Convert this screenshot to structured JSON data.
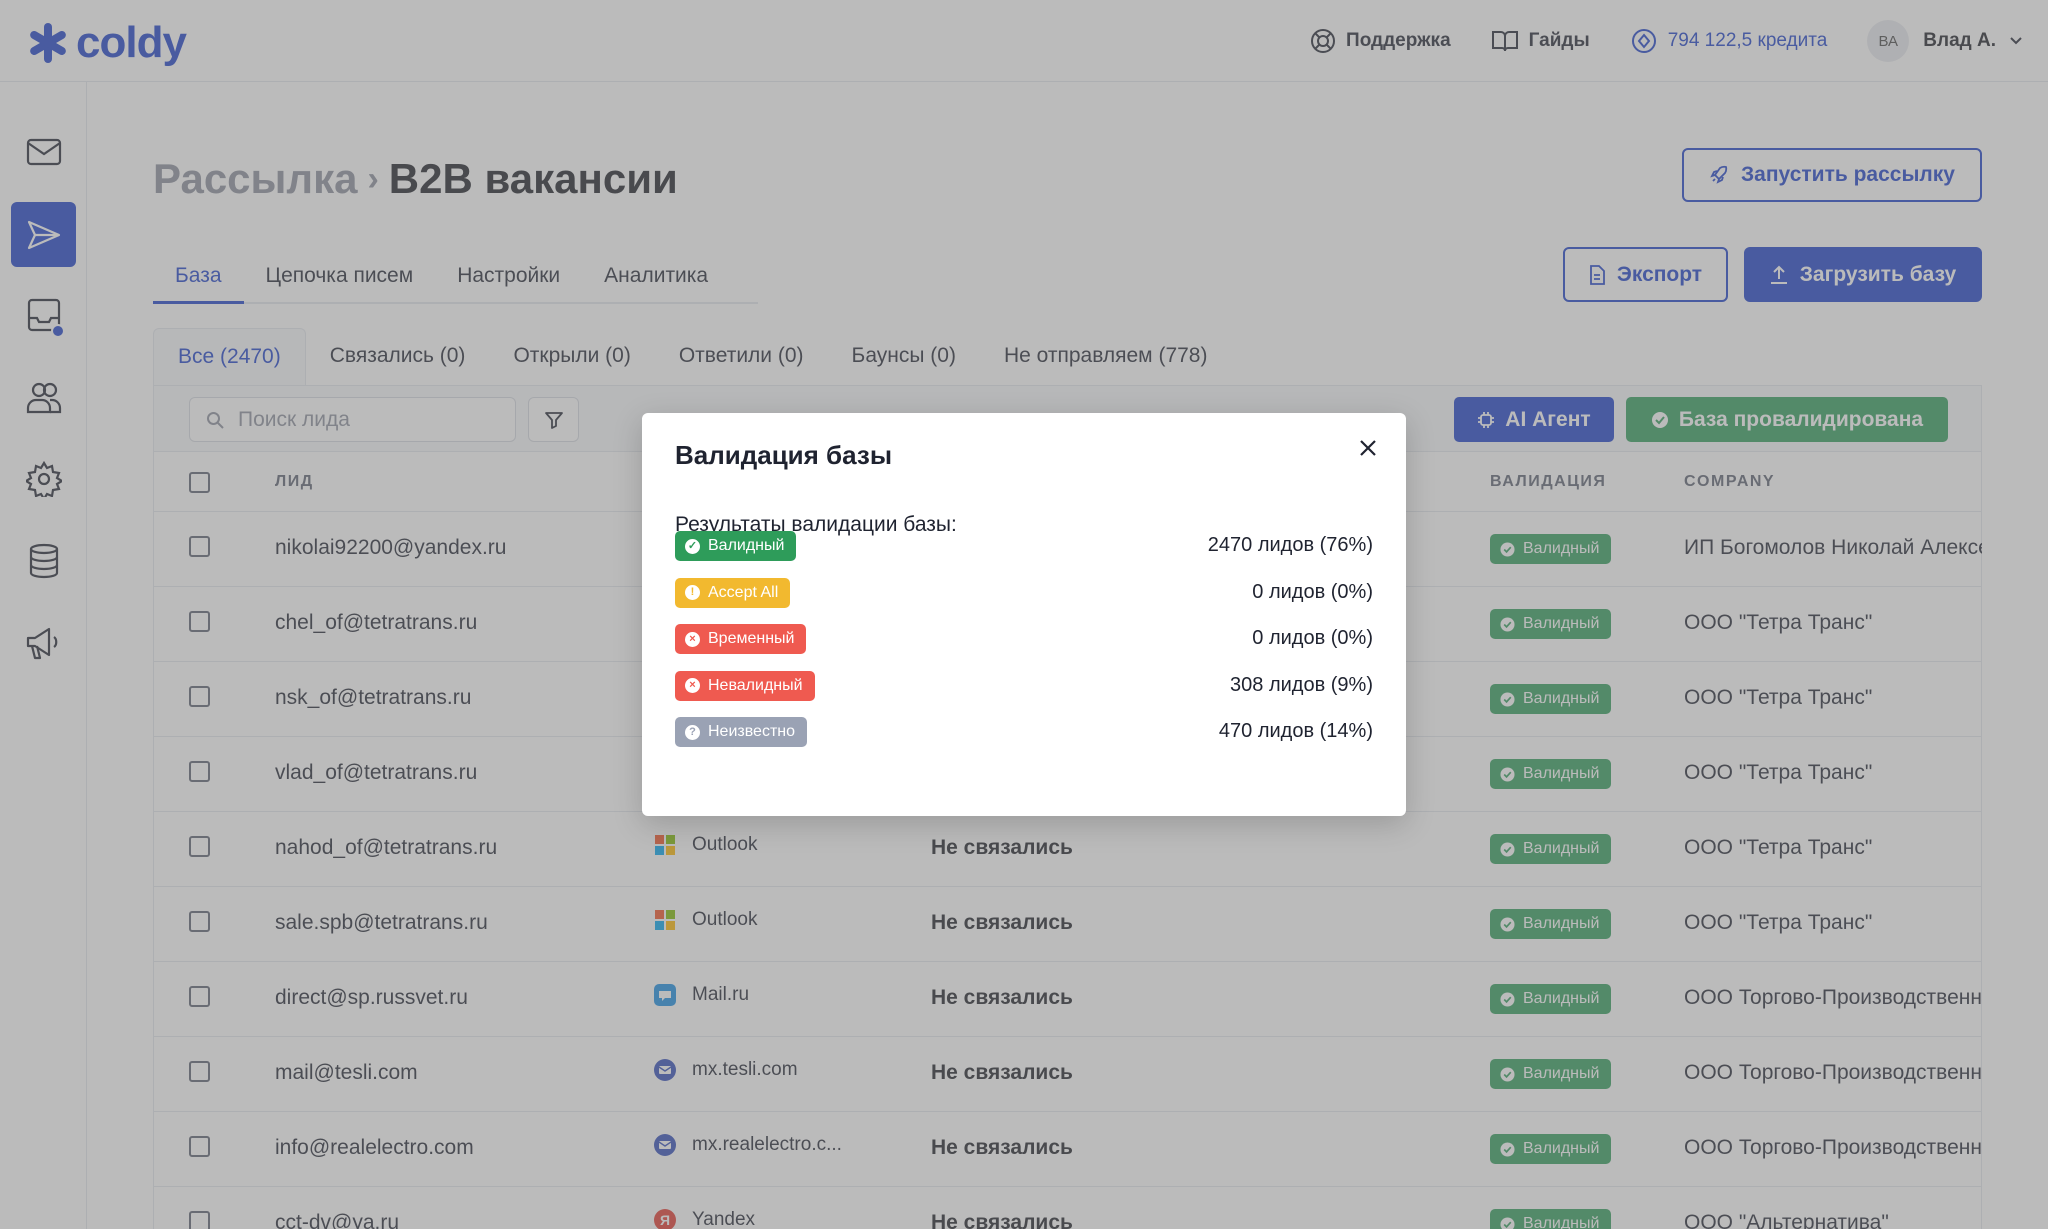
{
  "header": {
    "logo": "coldy",
    "support": "Поддержка",
    "guides": "Гайды",
    "credits": "794 122,5 кредита",
    "avatar_initials": "ВА",
    "user_name": "Влад А."
  },
  "breadcrumb": {
    "parent": "Рассылка",
    "current": "B2B вакансии"
  },
  "actions": {
    "launch": "Запустить рассылку",
    "export": "Экспорт",
    "upload": "Загрузить базу"
  },
  "tabs": [
    "База",
    "Цепочка писем",
    "Настройки",
    "Аналитика"
  ],
  "filter_tabs": [
    "Все (2470)",
    "Связались (0)",
    "Открыли (0)",
    "Ответили (0)",
    "Баунсы (0)",
    "Не отправляем (778)"
  ],
  "toolbar": {
    "search_placeholder": "Поиск лида",
    "ai_agent": "AI Агент",
    "validated": "База провалидирована"
  },
  "table": {
    "headers": {
      "lead": "ЛИД",
      "validation": "ВАЛИДАЦИЯ",
      "company": "COMPANY"
    },
    "rows": [
      {
        "email": "nikolai92200@yandex.ru",
        "provider": "",
        "status": "",
        "validation": "Валидный",
        "company": "ИП Богомолов Николай Алексеевич"
      },
      {
        "email": "chel_of@tetratrans.ru",
        "provider": "",
        "status": "",
        "validation": "Валидный",
        "company": "ООО \"Тетра Транс\""
      },
      {
        "email": "nsk_of@tetratrans.ru",
        "provider": "",
        "status": "",
        "validation": "Валидный",
        "company": "ООО \"Тетра Транс\""
      },
      {
        "email": "vlad_of@tetratrans.ru",
        "provider": "",
        "status": "",
        "validation": "Валидный",
        "company": "ООО \"Тетра Транс\""
      },
      {
        "email": "nahod_of@tetratrans.ru",
        "provider": "Outlook",
        "provider_icon": "microsoft-icon",
        "status": "Не связались",
        "validation": "Валидный",
        "company": "ООО \"Тетра Транс\""
      },
      {
        "email": "sale.spb@tetratrans.ru",
        "provider": "Outlook",
        "provider_icon": "microsoft-icon",
        "status": "Не связались",
        "validation": "Валидный",
        "company": "ООО \"Тетра Транс\""
      },
      {
        "email": "direct@sp.russvet.ru",
        "provider": "Mail.ru",
        "provider_icon": "mailru-icon",
        "status": "Не связались",
        "validation": "Валидный",
        "company": "ООО Торгово-Производственная"
      },
      {
        "email": "mail@tesli.com",
        "provider": "mx.tesli.com",
        "provider_icon": "envelope-icon",
        "status": "Не связались",
        "validation": "Валидный",
        "company": "ООО Торгово-Производственная"
      },
      {
        "email": "info@realelectro.com",
        "provider": "mx.realelectro.c...",
        "provider_icon": "envelope-icon",
        "status": "Не связались",
        "validation": "Валидный",
        "company": "ООО Торгово-Производственная"
      },
      {
        "email": "cct-dv@ya.ru",
        "provider": "Yandex",
        "provider_icon": "yandex-icon",
        "status": "Не связались",
        "validation": "Валидный",
        "company": "ООО \"Альтернатива\""
      }
    ]
  },
  "modal": {
    "title": "Валидация базы",
    "subtitle": "Результаты валидации базы:",
    "results": [
      {
        "label": "Валидный",
        "count": "2470 лидов (76%)",
        "color": "#2e9c5a",
        "icon": "check-icon"
      },
      {
        "label": "Accept All",
        "count": "0 лидов (0%)",
        "color": "#f2b92f",
        "icon": "exclamation-icon"
      },
      {
        "label": "Временный",
        "count": "0 лидов (0%)",
        "color": "#ef5a50",
        "icon": "x-icon"
      },
      {
        "label": "Невалидный",
        "count": "308 лидов (9%)",
        "color": "#ef5a50",
        "icon": "x-icon"
      },
      {
        "label": "Неизвестно",
        "count": "470 лидов (14%)",
        "color": "#9aa2b4",
        "icon": "question-icon"
      }
    ]
  },
  "colors": {
    "primary": "#1a3fc9",
    "success": "#2e9c5a",
    "warning": "#f2b92f",
    "danger": "#ef5a50",
    "neutral": "#9aa2b4"
  }
}
